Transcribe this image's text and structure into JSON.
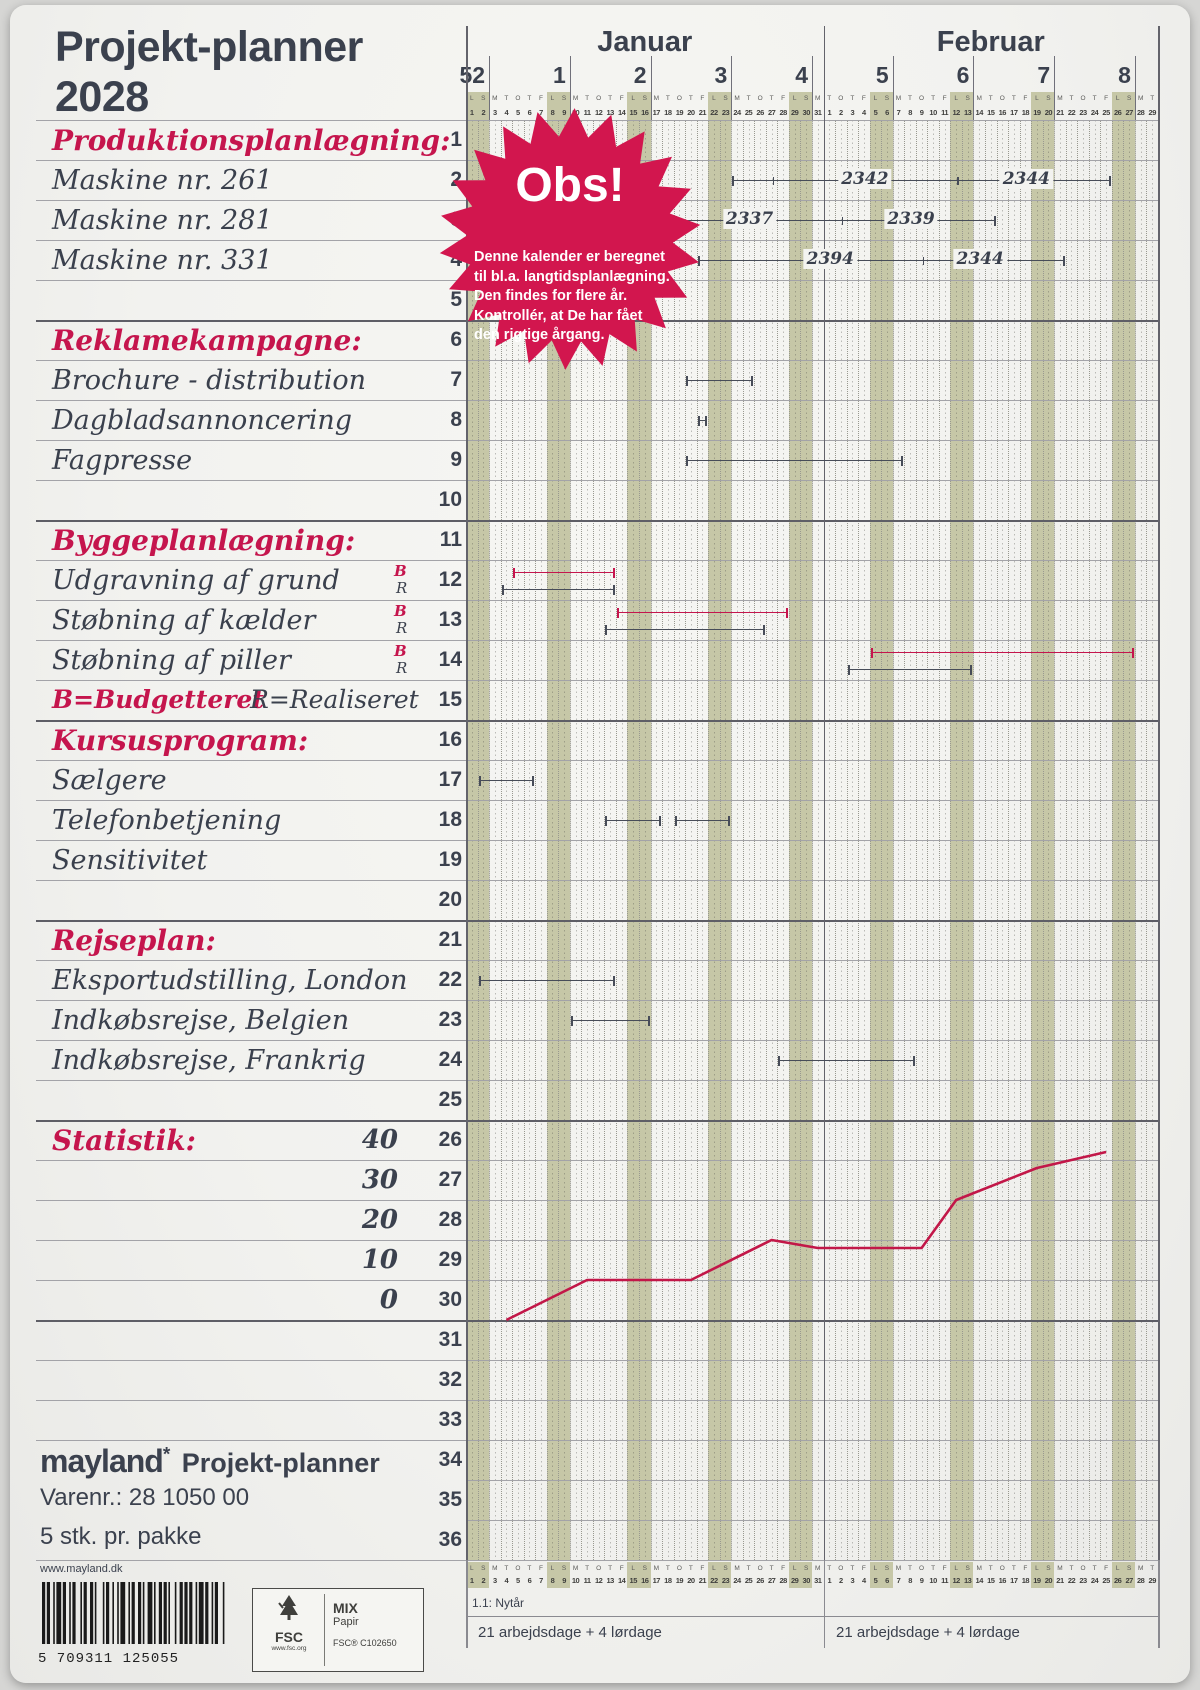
{
  "page": {
    "title_line1": "Projekt-planner",
    "title_line2": "2028"
  },
  "colors": {
    "slate": "#3b414e",
    "accent_red": "#c5154d",
    "badge_red": "#d2164e",
    "weekend_band": "#c6c7a7",
    "stats_line": "#c21748"
  },
  "obs_badge": {
    "title": "Obs!",
    "lines": [
      "Denne kalender er beregnet",
      "til bl.a. langtidsplanlægning.",
      "Den findes for flere år.",
      "Kontrollér, at De har fået",
      "den rigtige årgang."
    ]
  },
  "calendar": {
    "months": [
      {
        "name": "Januar",
        "days": 31
      },
      {
        "name": "Februar",
        "days": 29
      }
    ],
    "week_numbers": [
      "52",
      "1",
      "2",
      "3",
      "4",
      "5",
      "6",
      "7",
      "8"
    ],
    "day_letter_cycle": [
      "L",
      "S",
      "M",
      "T",
      "O",
      "T",
      "F"
    ],
    "weekend_cycle_indices": [
      0,
      1
    ]
  },
  "rows": [
    {
      "num": "1",
      "label": "Produktionsplanlægning:",
      "type": "heading"
    },
    {
      "num": "2",
      "label": "Maskine nr. 261",
      "type": "item"
    },
    {
      "num": "3",
      "label": "Maskine nr. 281",
      "type": "item"
    },
    {
      "num": "4",
      "label": "Maskine nr. 331",
      "type": "item"
    },
    {
      "num": "5",
      "label": "",
      "type": "empty"
    },
    {
      "num": "6",
      "label": "Reklamekampagne:",
      "type": "heading"
    },
    {
      "num": "7",
      "label": "Brochure - distribution",
      "type": "item"
    },
    {
      "num": "8",
      "label": "Dagbladsannoncering",
      "type": "item"
    },
    {
      "num": "9",
      "label": "Fagpresse",
      "type": "item"
    },
    {
      "num": "10",
      "label": "",
      "type": "empty"
    },
    {
      "num": "11",
      "label": "Byggeplanlægning:",
      "type": "heading"
    },
    {
      "num": "12",
      "label": "Udgravning af grund",
      "type": "item",
      "marks": [
        "B",
        "R"
      ]
    },
    {
      "num": "13",
      "label": "Støbning af kælder",
      "type": "item",
      "marks": [
        "B",
        "R"
      ]
    },
    {
      "num": "14",
      "label": "Støbning af piller",
      "type": "item",
      "marks": [
        "B",
        "R"
      ]
    },
    {
      "num": "15",
      "label": "",
      "type": "legend"
    },
    {
      "num": "16",
      "label": "Kursusprogram:",
      "type": "heading"
    },
    {
      "num": "17",
      "label": "Sælgere",
      "type": "item"
    },
    {
      "num": "18",
      "label": "Telefonbetjening",
      "type": "item"
    },
    {
      "num": "19",
      "label": "Sensitivitet",
      "type": "item"
    },
    {
      "num": "20",
      "label": "",
      "type": "empty"
    },
    {
      "num": "21",
      "label": "Rejseplan:",
      "type": "heading"
    },
    {
      "num": "22",
      "label": "Eksportudstilling, London",
      "type": "item"
    },
    {
      "num": "23",
      "label": "Indkøbsrejse, Belgien",
      "type": "item"
    },
    {
      "num": "24",
      "label": "Indkøbsrejse, Frankrig",
      "type": "item"
    },
    {
      "num": "25",
      "label": "",
      "type": "empty"
    },
    {
      "num": "26",
      "label": "Statistik:",
      "type": "heading",
      "scale": "40"
    },
    {
      "num": "27",
      "label": "",
      "type": "empty",
      "scale": "30"
    },
    {
      "num": "28",
      "label": "",
      "type": "empty",
      "scale": "20"
    },
    {
      "num": "29",
      "label": "",
      "type": "empty",
      "scale": "10"
    },
    {
      "num": "30",
      "label": "",
      "type": "empty",
      "scale": "0"
    },
    {
      "num": "31",
      "label": "",
      "type": "empty"
    },
    {
      "num": "32",
      "label": "",
      "type": "empty"
    },
    {
      "num": "33",
      "label": "",
      "type": "empty"
    },
    {
      "num": "34",
      "label": "",
      "type": "empty"
    },
    {
      "num": "35",
      "label": "",
      "type": "empty"
    },
    {
      "num": "36",
      "label": "",
      "type": "empty"
    }
  ],
  "legend": {
    "b": "B=Budgetteret",
    "r": "R=Realiseret"
  },
  "gantt": [
    {
      "row": 2,
      "color": "dark",
      "lane": "mid",
      "start": 24,
      "end": 56,
      "ticks": [
        27,
        43
      ],
      "labels": [
        {
          "text": "2342",
          "day": 35
        },
        {
          "text": "2344",
          "day": 49
        }
      ]
    },
    {
      "row": 3,
      "color": "dark",
      "lane": "mid",
      "start": 19,
      "end": 46,
      "ticks": [
        33
      ],
      "labels": [
        {
          "text": "2337",
          "day": 25
        },
        {
          "text": "2339",
          "day": 39
        }
      ]
    },
    {
      "row": 4,
      "color": "dark",
      "lane": "mid",
      "start": 21,
      "end": 52,
      "ticks": [
        40
      ],
      "labels": [
        {
          "text": "2394",
          "day": 32
        },
        {
          "text": "2344",
          "day": 45
        }
      ]
    },
    {
      "row": 7,
      "color": "dark",
      "lane": "mid",
      "start": 20,
      "end": 25,
      "ticks": [],
      "labels": []
    },
    {
      "row": 8,
      "color": "dark",
      "lane": "mid",
      "start": 21,
      "end": 21,
      "ticks": [],
      "labels": []
    },
    {
      "row": 9,
      "color": "dark",
      "lane": "mid",
      "start": 20,
      "end": 38,
      "ticks": [],
      "labels": []
    },
    {
      "row": 12,
      "color": "red",
      "lane": "top",
      "start": 5,
      "end": 13,
      "ticks": [],
      "labels": []
    },
    {
      "row": 12,
      "color": "dark",
      "lane": "bottom",
      "start": 4,
      "end": 13,
      "ticks": [],
      "labels": []
    },
    {
      "row": 13,
      "color": "red",
      "lane": "top",
      "start": 14,
      "end": 28,
      "ticks": [],
      "labels": []
    },
    {
      "row": 13,
      "color": "dark",
      "lane": "bottom",
      "start": 13,
      "end": 26,
      "ticks": [],
      "labels": []
    },
    {
      "row": 14,
      "color": "red",
      "lane": "top",
      "start": 36,
      "end": 58,
      "ticks": [],
      "labels": []
    },
    {
      "row": 14,
      "color": "dark",
      "lane": "bottom",
      "start": 34,
      "end": 44,
      "ticks": [],
      "labels": []
    },
    {
      "row": 17,
      "color": "dark",
      "lane": "mid",
      "start": 2,
      "end": 6,
      "ticks": [],
      "labels": []
    },
    {
      "row": 18,
      "color": "dark",
      "lane": "mid",
      "start": 13,
      "end": 17,
      "ticks": [],
      "labels": []
    },
    {
      "row": 18,
      "color": "dark",
      "lane": "mid",
      "start": 19,
      "end": 23,
      "ticks": [],
      "labels": []
    },
    {
      "row": 22,
      "color": "dark",
      "lane": "mid",
      "start": 2,
      "end": 13,
      "ticks": [],
      "labels": []
    },
    {
      "row": 23,
      "color": "dark",
      "lane": "mid",
      "start": 10,
      "end": 16,
      "ticks": [],
      "labels": []
    },
    {
      "row": 24,
      "color": "dark",
      "lane": "mid",
      "start": 28,
      "end": 39,
      "ticks": [],
      "labels": []
    }
  ],
  "chart_data": {
    "type": "line",
    "title": "Statistik:",
    "ylabel_ticks": [
      "40",
      "30",
      "20",
      "10",
      "0"
    ],
    "ylim": [
      0,
      40
    ],
    "x_unit": "day of Jan 1 - Feb 29 (1-60)",
    "x": [
      4,
      11,
      20,
      27,
      31,
      40,
      43,
      50,
      56
    ],
    "values": [
      0,
      10,
      10,
      20,
      18,
      18,
      30,
      38,
      42
    ]
  },
  "brand": {
    "logo": "mayland",
    "logo_mark": "*",
    "product": "Projekt-planner",
    "varenr": "Varenr.: 28 1050 00",
    "pack": "5 stk. pr. pakke",
    "website": "www.mayland.dk",
    "barcode": "5 709311 125055"
  },
  "fsc": {
    "name": "FSC",
    "url": "www.fsc.org",
    "mix": "MIX",
    "papir": "Papir",
    "cert": "FSC® C102650"
  },
  "footer": {
    "holiday": "1.1: Nytår",
    "jan_workdays": "21 arbejdsdage + 4 lørdage",
    "feb_workdays": "21 arbejdsdage + 4 lørdage"
  }
}
